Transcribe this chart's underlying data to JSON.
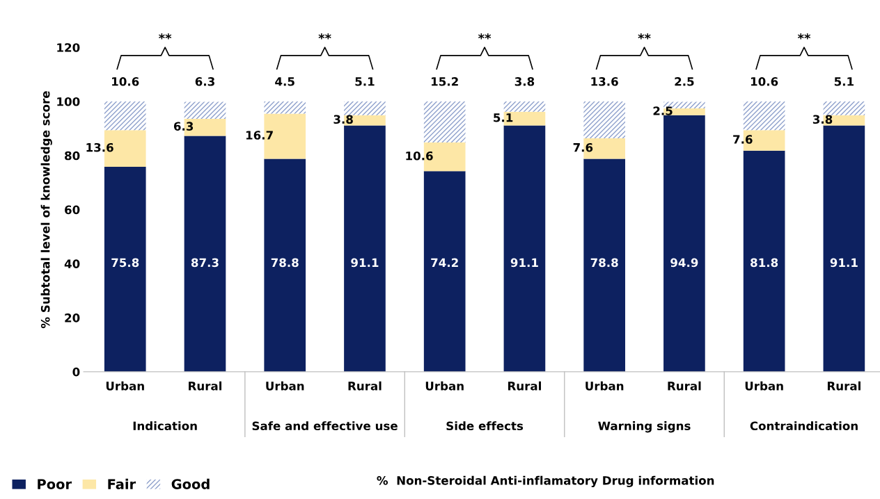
{
  "chart_data": {
    "type": "bar",
    "stacked": true,
    "data_labels": true,
    "categories": [
      "Urban",
      "Rural",
      "Urban",
      "Rural",
      "Urban",
      "Rural",
      "Urban",
      "Rural",
      "Urban",
      "Rural"
    ],
    "series": [
      {
        "name": "Poor",
        "color": "#0d2160",
        "values": [
          75.8,
          87.3,
          78.8,
          91.1,
          74.2,
          91.1,
          78.8,
          94.9,
          81.8,
          91.1
        ]
      },
      {
        "name": "Fair",
        "color": "#fde7a6",
        "values": [
          13.6,
          6.3,
          16.7,
          3.8,
          10.6,
          5.1,
          7.6,
          2.5,
          7.6,
          3.8
        ]
      },
      {
        "name": "Good",
        "color": "#8fa1cc",
        "values": [
          10.6,
          6.3,
          4.5,
          5.1,
          15.2,
          3.8,
          13.6,
          2.5,
          10.6,
          5.1
        ]
      }
    ],
    "ylim": [
      0,
      120
    ],
    "yticks": [
      0,
      20,
      40,
      60,
      80,
      100,
      120
    ],
    "ylabel": "% Subtotal level of knowledge score",
    "annotations": [
      "Indication",
      "Safe and effective use",
      "Side effects",
      "Warning signs",
      "Contraindication",
      "**",
      "**",
      "**",
      "**",
      "**",
      "%  Non-Steroidal Anti-inflamatory Drug information"
    ],
    "legend": "bottom left",
    "grid": false
  }
}
